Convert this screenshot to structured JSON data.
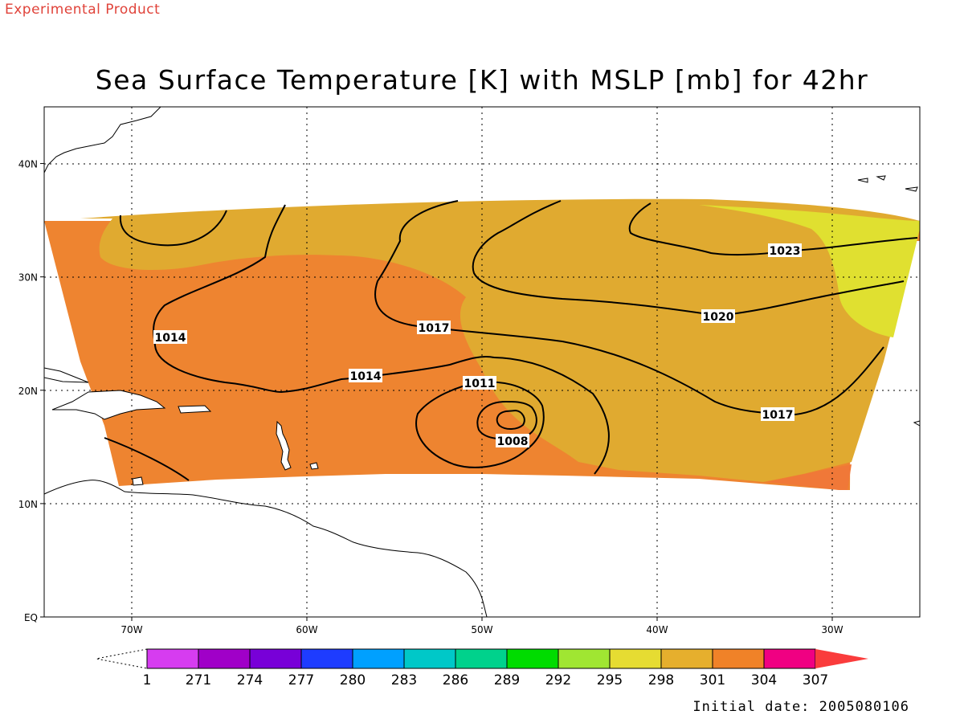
{
  "header": {
    "tag": "Experimental Product",
    "title": "Sea Surface Temperature [K] with MSLP [mb] for 42hr"
  },
  "footer": {
    "initial_date": "Initial date: 2005080106"
  },
  "map": {
    "projection": "lat-lon",
    "lon_range": [
      -75,
      -25
    ],
    "lat_range": [
      0,
      45
    ],
    "grid": "dotted",
    "lon_ticks": [
      {
        "lon": -70,
        "label": "70W"
      },
      {
        "lon": -60,
        "label": "60W"
      },
      {
        "lon": -50,
        "label": "50W"
      },
      {
        "lon": -40,
        "label": "40W"
      },
      {
        "lon": -30,
        "label": "30W"
      }
    ],
    "lat_ticks": [
      {
        "lat": 0,
        "label": "EQ"
      },
      {
        "lat": 10,
        "label": "10N"
      },
      {
        "lat": 20,
        "label": "20N"
      },
      {
        "lat": 30,
        "label": "30N"
      },
      {
        "lat": 40,
        "label": "40N"
      }
    ],
    "sst_colors": {
      "band_298": "#e0e030",
      "band_301": "#e0aa30",
      "band_304": "#ee8430",
      "low_band": "#f07838"
    },
    "isobar_labels": [
      {
        "id": "1014-west",
        "text": "1014"
      },
      {
        "id": "1014-mid",
        "text": "1014"
      },
      {
        "id": "1017-mid",
        "text": "1017"
      },
      {
        "id": "1011",
        "text": "1011"
      },
      {
        "id": "1008",
        "text": "1008"
      },
      {
        "id": "1020",
        "text": "1020"
      },
      {
        "id": "1023",
        "text": "1023"
      },
      {
        "id": "1017-east",
        "text": "1017"
      }
    ]
  },
  "colorbar": {
    "labels": [
      "1",
      "271",
      "274",
      "277",
      "280",
      "283",
      "286",
      "289",
      "292",
      "295",
      "298",
      "301",
      "304",
      "307"
    ],
    "colors": [
      "#d63cf0",
      "#a000c8",
      "#7800d8",
      "#1e3cff",
      "#00a0ff",
      "#00c8c8",
      "#00d28c",
      "#00dc00",
      "#a0e632",
      "#e6dc32",
      "#e6af2d",
      "#f08228",
      "#f00082",
      "#fa3c3c"
    ]
  }
}
